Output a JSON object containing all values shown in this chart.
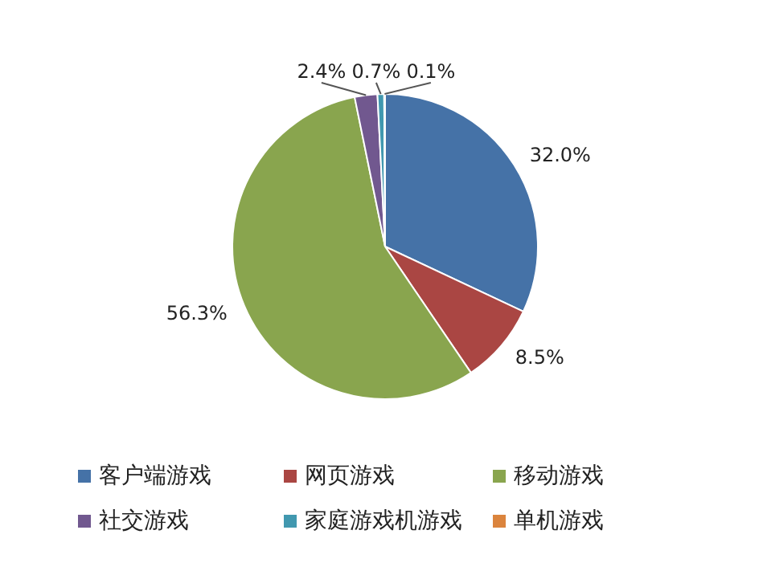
{
  "chart_data": {
    "type": "pie",
    "categories": [
      "客户端游戏",
      "网页游戏",
      "移动游戏",
      "社交游戏",
      "家庭游戏机游戏",
      "单机游戏"
    ],
    "values": [
      32.0,
      8.5,
      56.3,
      2.4,
      0.7,
      0.1
    ],
    "colors": [
      "#4572a7",
      "#aa4643",
      "#89a54e",
      "#71588f",
      "#4198af",
      "#db843d"
    ],
    "value_labels": [
      "32.0%",
      "8.5%",
      "56.3%",
      "2.4%",
      "0.7%",
      "0.1%"
    ],
    "legend": "bottom"
  }
}
